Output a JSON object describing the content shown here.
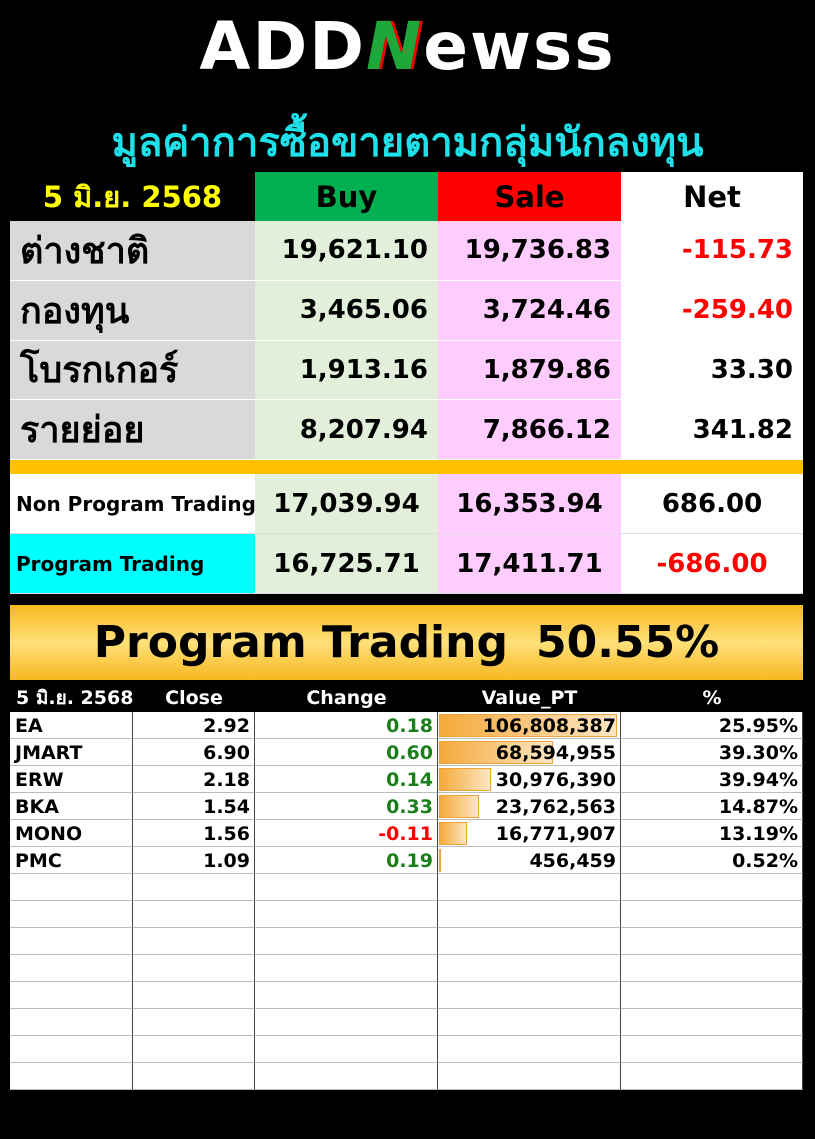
{
  "header": {
    "logo": {
      "left": "ADD",
      "mark": "N",
      "right": "ewss"
    },
    "title": "มูลค่าการซื้อขายตามกลุ่มนักลงทุน"
  },
  "summary": {
    "header": [
      "5 มิ.ย. 2568",
      "Buy",
      "Sale",
      "Net"
    ],
    "rows": [
      [
        "ต่างชาติ",
        "19,621.10",
        "19,736.83",
        "-115.73"
      ],
      [
        "กองทุน",
        "3,465.06",
        "3,724.46",
        "-259.40"
      ],
      [
        "โบรกเกอร์",
        "1,913.16",
        "1,879.86",
        "33.30"
      ],
      [
        "รายย่อย",
        "8,207.94",
        "7,866.12",
        "341.82"
      ]
    ]
  },
  "program": {
    "rows": [
      [
        "Non Program Trading",
        "17,039.94",
        "16,353.94",
        "686.00"
      ],
      [
        "Program Trading",
        "16,725.71",
        "17,411.71",
        "-686.00"
      ]
    ]
  },
  "banner": {
    "label": "Program Trading",
    "value": "50.55%"
  },
  "stocks": {
    "header": [
      "5 มิ.ย. 2568",
      "Close",
      "Change",
      "Value_PT",
      "%"
    ],
    "rows": [
      [
        "EA",
        "2.92",
        "0.18",
        "106,808,387",
        "25.95%"
      ],
      [
        "JMART",
        "6.90",
        "0.60",
        "68,594,955",
        "39.30%"
      ],
      [
        "ERW",
        "2.18",
        "0.14",
        "30,976,390",
        "39.94%"
      ],
      [
        "BKA",
        "1.54",
        "0.33",
        "23,762,563",
        "14.87%"
      ],
      [
        "MONO",
        "1.56",
        "-0.11",
        "16,771,907",
        "13.19%"
      ],
      [
        "PMC",
        "1.09",
        "0.19",
        "456,459",
        "0.52%"
      ]
    ]
  }
}
